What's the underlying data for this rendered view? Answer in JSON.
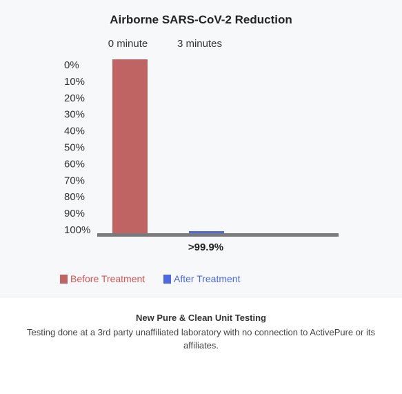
{
  "chart_data": {
    "type": "bar",
    "title": "Airborne SARS-CoV-2 Reduction",
    "categories": [
      "0 minute",
      "3 minutes"
    ],
    "series": [
      {
        "name": "Before Treatment",
        "values": [
          100,
          null
        ],
        "color": "#c06463"
      },
      {
        "name": "After Treatment",
        "values": [
          null,
          0.1
        ],
        "color": "#4d69e6"
      }
    ],
    "y_tick_labels": [
      "0%",
      "10%",
      "20%",
      "30%",
      "40%",
      "50%",
      "60%",
      "70%",
      "80%",
      "90%",
      "100%"
    ],
    "ylim": [
      0,
      100
    ],
    "annotation": ">99.9%",
    "axis_color": "#7a7a7a",
    "legend_position": "bottom-left"
  },
  "footer": {
    "title": "New Pure & Clean Unit Testing",
    "text": "Testing done at a 3rd party unaffiliated laboratory with no connection to ActivePure or its affiliates."
  }
}
